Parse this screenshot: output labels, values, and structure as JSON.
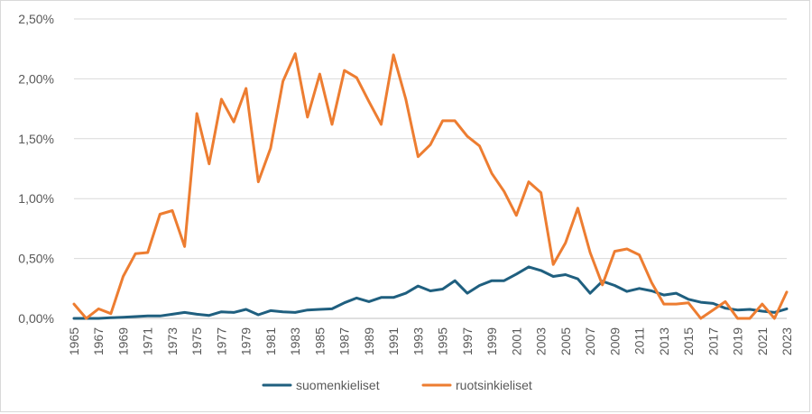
{
  "chart_data": {
    "type": "line",
    "title": "",
    "xlabel": "",
    "ylabel": "",
    "ylim": [
      0,
      2.5
    ],
    "y_ticks": [
      0,
      0.5,
      1.0,
      1.5,
      2.0,
      2.5
    ],
    "y_tick_labels": [
      "0,00%",
      "0,50%",
      "1,00%",
      "1,50%",
      "2,00%",
      "2,50%"
    ],
    "x": [
      1965,
      1966,
      1967,
      1968,
      1969,
      1970,
      1971,
      1972,
      1973,
      1974,
      1975,
      1976,
      1977,
      1978,
      1979,
      1980,
      1981,
      1982,
      1983,
      1984,
      1985,
      1986,
      1987,
      1988,
      1989,
      1990,
      1991,
      1992,
      1993,
      1994,
      1995,
      1996,
      1997,
      1998,
      1999,
      2000,
      2001,
      2002,
      2003,
      2004,
      2005,
      2006,
      2007,
      2008,
      2009,
      2010,
      2011,
      2012,
      2013,
      2014,
      2015,
      2016,
      2017,
      2018,
      2019,
      2020,
      2021,
      2022,
      2023
    ],
    "x_tick_labels": [
      "1965",
      "1967",
      "1969",
      "1971",
      "1973",
      "1975",
      "1977",
      "1979",
      "1981",
      "1983",
      "1985",
      "1987",
      "1989",
      "1991",
      "1993",
      "1995",
      "1997",
      "1999",
      "2001",
      "2003",
      "2005",
      "2007",
      "2009",
      "2011",
      "2013",
      "2015",
      "2017",
      "2019",
      "2021",
      "2023"
    ],
    "grid": true,
    "legend_position": "bottom",
    "series": [
      {
        "name": "suomenkieliset",
        "color": "#1f5f7f",
        "values": [
          0.0,
          0.0,
          0.0,
          0.005,
          0.01,
          0.015,
          0.02,
          0.02,
          0.035,
          0.05,
          0.035,
          0.025,
          0.055,
          0.05,
          0.075,
          0.03,
          0.065,
          0.055,
          0.05,
          0.07,
          0.075,
          0.08,
          0.13,
          0.17,
          0.14,
          0.175,
          0.175,
          0.21,
          0.27,
          0.23,
          0.245,
          0.315,
          0.21,
          0.275,
          0.315,
          0.315,
          0.37,
          0.43,
          0.4,
          0.35,
          0.365,
          0.33,
          0.21,
          0.31,
          0.275,
          0.225,
          0.25,
          0.23,
          0.195,
          0.21,
          0.16,
          0.135,
          0.125,
          0.085,
          0.07,
          0.075,
          0.06,
          0.05,
          0.08
        ]
      },
      {
        "name": "ruotsinkieliset",
        "color": "#ed7d31",
        "values": [
          0.12,
          0.0,
          0.08,
          0.04,
          0.35,
          0.54,
          0.55,
          0.87,
          0.9,
          0.6,
          1.71,
          1.29,
          1.83,
          1.64,
          1.92,
          1.14,
          1.42,
          1.98,
          2.21,
          1.68,
          2.04,
          1.62,
          2.07,
          2.01,
          1.81,
          1.62,
          2.2,
          1.83,
          1.35,
          1.45,
          1.65,
          1.65,
          1.52,
          1.44,
          1.21,
          1.06,
          0.86,
          1.14,
          1.05,
          0.45,
          0.63,
          0.92,
          0.55,
          0.28,
          0.56,
          0.58,
          0.53,
          0.3,
          0.12,
          0.12,
          0.13,
          0.0,
          0.07,
          0.14,
          0.0,
          0.0,
          0.12,
          0.0,
          0.22
        ]
      }
    ]
  }
}
